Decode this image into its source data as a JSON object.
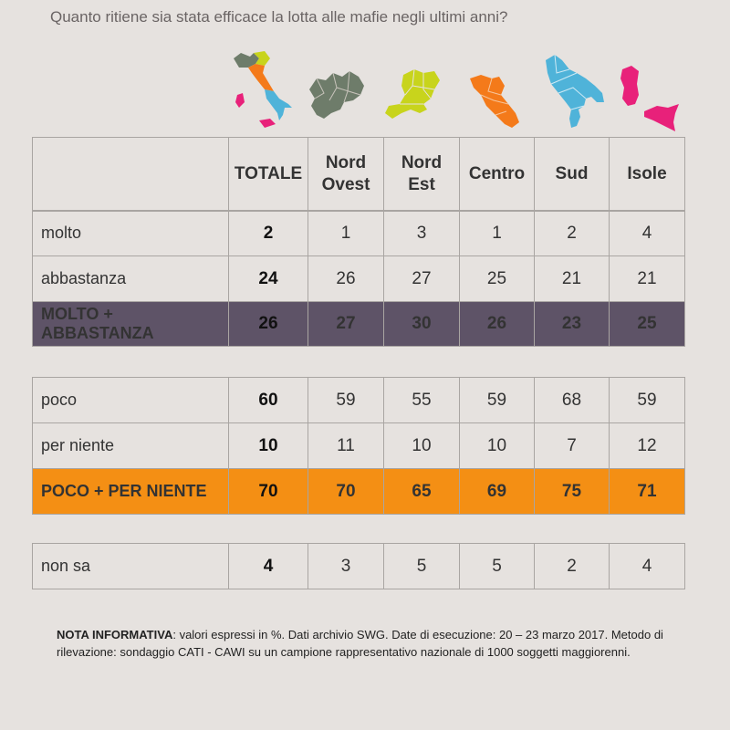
{
  "title": "Quanto ritiene sia stata efficace la lotta alle mafie negli ultimi anni?",
  "colors": {
    "molto_abbastanza_bg": "#5e5367",
    "poco_per_niente_bg": "#f48f14",
    "map_nord_ovest": "#6e7c6a",
    "map_nord_est": "#c8d41c",
    "map_centro": "#f47a1a",
    "map_sud": "#4fb3d9",
    "map_isole": "#e8217a"
  },
  "map_icons": [
    "italy-map-icon",
    "nord-ovest-map-icon",
    "nord-est-map-icon",
    "centro-map-icon",
    "sud-map-icon",
    "isole-map-icon"
  ],
  "chart_data": {
    "type": "table",
    "title": "Quanto ritiene sia stata efficace la lotta alle mafie negli ultimi anni?",
    "columns": [
      "TOTALE",
      "Nord Ovest",
      "Nord Est",
      "Centro",
      "Sud",
      "Isole"
    ],
    "column_header_lines": [
      [
        "TOTALE"
      ],
      [
        "Nord",
        "Ovest"
      ],
      [
        "Nord",
        "Est"
      ],
      [
        "Centro"
      ],
      [
        "Sud"
      ],
      [
        "Isole"
      ]
    ],
    "group1": [
      {
        "label": "molto",
        "values": [
          2,
          1,
          3,
          1,
          2,
          4
        ]
      },
      {
        "label": "abbastanza",
        "values": [
          24,
          26,
          27,
          25,
          21,
          21
        ]
      }
    ],
    "group1_total": {
      "label": "MOLTO + ABBASTANZA",
      "values": [
        26,
        27,
        30,
        26,
        23,
        25
      ]
    },
    "group2": [
      {
        "label": "poco",
        "values": [
          60,
          59,
          55,
          59,
          68,
          59
        ]
      },
      {
        "label": "per niente",
        "values": [
          10,
          11,
          10,
          10,
          7,
          12
        ]
      }
    ],
    "group2_total": {
      "label": "POCO + PER NIENTE",
      "values": [
        70,
        70,
        65,
        69,
        75,
        71
      ]
    },
    "group3": [
      {
        "label": "non sa",
        "values": [
          4,
          3,
          5,
          5,
          2,
          4
        ]
      }
    ]
  },
  "note": {
    "label": "NOTA INFORMATIVA",
    "text": ": valori espressi in %. Dati archivio SWG. Date di esecuzione: 20 – 23 marzo 2017. Metodo di rilevazione: sondaggio CATI - CAWI su un campione rappresentativo nazionale di 1000 soggetti maggiorenni."
  }
}
